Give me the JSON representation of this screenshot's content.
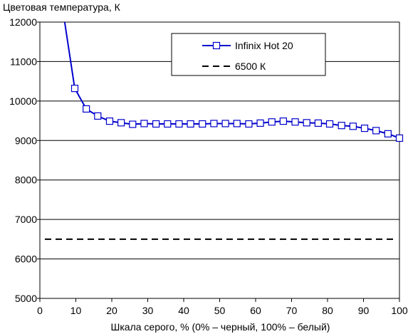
{
  "chart_data": {
    "type": "line",
    "title": "",
    "ylabel": "Цветовая температура, К",
    "xlabel": "Шкала серого, % (0% – черный, 100% – белый)",
    "xlim": [
      0,
      100
    ],
    "ylim": [
      5000,
      12000
    ],
    "xticks": [
      "0",
      "10",
      "20",
      "30",
      "40",
      "50",
      "60",
      "70",
      "80",
      "90",
      "100"
    ],
    "yticks": [
      "5000",
      "6000",
      "7000",
      "8000",
      "9000",
      "10000",
      "11000",
      "12000"
    ],
    "grid": "horizontal",
    "legend_position": "top-right",
    "colors": {
      "series": "#0000cc",
      "reference": "#000000",
      "grid": "#000000"
    },
    "series": [
      {
        "name": "Infinix Hot 20",
        "style": "solid-line-square-markers",
        "points": [
          {
            "x": 6.9,
            "y": 12000,
            "marker": false
          },
          {
            "x": 9.7,
            "y": 10320
          },
          {
            "x": 12.9,
            "y": 9800
          },
          {
            "x": 16.1,
            "y": 9620
          },
          {
            "x": 19.4,
            "y": 9490
          },
          {
            "x": 22.6,
            "y": 9450
          },
          {
            "x": 25.8,
            "y": 9410
          },
          {
            "x": 29.0,
            "y": 9430
          },
          {
            "x": 32.3,
            "y": 9420
          },
          {
            "x": 35.5,
            "y": 9420
          },
          {
            "x": 38.7,
            "y": 9420
          },
          {
            "x": 41.9,
            "y": 9420
          },
          {
            "x": 45.2,
            "y": 9420
          },
          {
            "x": 48.4,
            "y": 9430
          },
          {
            "x": 51.6,
            "y": 9430
          },
          {
            "x": 54.8,
            "y": 9430
          },
          {
            "x": 58.1,
            "y": 9420
          },
          {
            "x": 61.3,
            "y": 9440
          },
          {
            "x": 64.5,
            "y": 9470
          },
          {
            "x": 67.7,
            "y": 9490
          },
          {
            "x": 71.0,
            "y": 9470
          },
          {
            "x": 74.2,
            "y": 9450
          },
          {
            "x": 77.4,
            "y": 9440
          },
          {
            "x": 80.6,
            "y": 9420
          },
          {
            "x": 83.9,
            "y": 9380
          },
          {
            "x": 87.1,
            "y": 9360
          },
          {
            "x": 90.3,
            "y": 9310
          },
          {
            "x": 93.5,
            "y": 9250
          },
          {
            "x": 96.8,
            "y": 9170
          },
          {
            "x": 100,
            "y": 9060
          }
        ]
      },
      {
        "name": "6500 К",
        "style": "dashed",
        "x": [
          0,
          100
        ],
        "values": [
          6500,
          6500
        ]
      }
    ]
  }
}
